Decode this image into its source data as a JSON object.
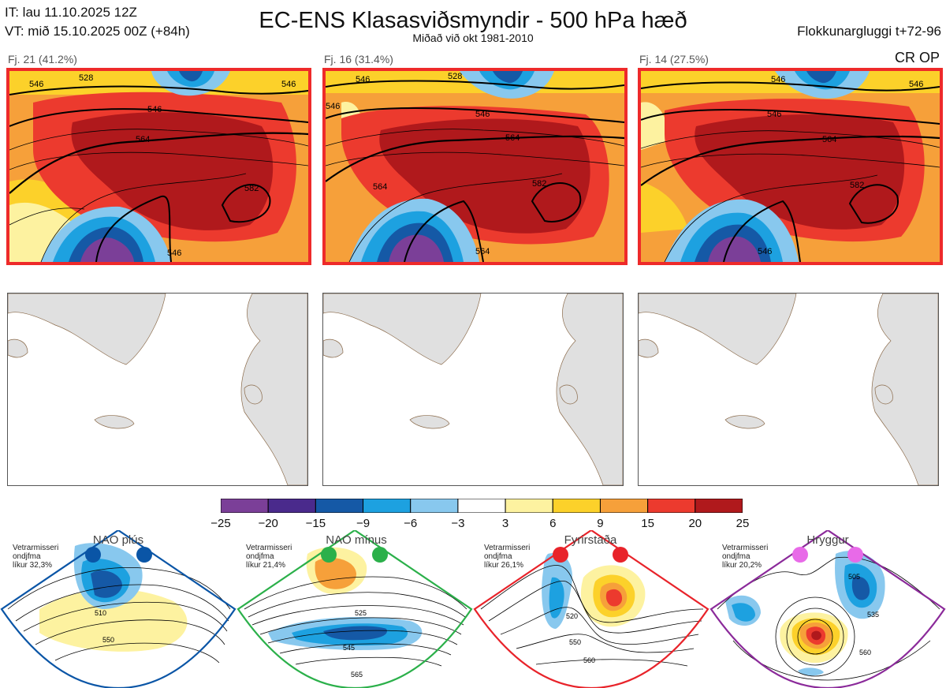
{
  "header": {
    "it_line": "IT: lau 11.10.2025 12Z",
    "vt_line": "VT: mið 15.10.2025 00Z  (+84h)",
    "title": "EC-ENS Klasasviðsmyndir - 500 hPa hæð",
    "subtitle": "Miðað við okt 1981-2010",
    "window": "Flokkunargluggi t+72-96"
  },
  "panels": [
    {
      "label": "Fj. 21 (41.2%)",
      "contours": [
        "528",
        "546",
        "546",
        "564",
        "582",
        "546",
        "546"
      ]
    },
    {
      "label": "Fj. 16 (31.4%)",
      "contours": [
        "546",
        "528",
        "546",
        "546",
        "564",
        "582",
        "564",
        "564"
      ]
    },
    {
      "label": "Fj. 14 (27.5%)",
      "contours": [
        "546",
        "546",
        "564",
        "582",
        "546",
        "546"
      ]
    }
  ],
  "top_right_tag": "CR OP",
  "colorbar": {
    "colors": [
      "#7b3f98",
      "#4a2a8c",
      "#1559a6",
      "#1da1e0",
      "#88c8ee",
      "#ffffff",
      "#fdf2a0",
      "#fcd12a",
      "#f6a03a",
      "#ec3a2e",
      "#b0191c"
    ],
    "ticks": [
      "−25",
      "−20",
      "−15",
      "−9",
      "−6",
      "−3",
      "3",
      "6",
      "9",
      "15",
      "20",
      "25"
    ]
  },
  "regimes": [
    {
      "name": "NAO plús",
      "line1": "Vetrarmisseri",
      "line2": "ondjfma",
      "line3": "líkur 32,3%",
      "color": "#0a55a6",
      "contours": [
        "510",
        "550"
      ]
    },
    {
      "name": "NAO mínus",
      "line1": "Vetrarmisseri",
      "line2": "ondjfma",
      "line3": "líkur 21,4%",
      "color": "#2bb04a",
      "contours": [
        "525",
        "545",
        "565"
      ]
    },
    {
      "name": "Fyrirstaða",
      "line1": "Vetrarmisseri",
      "line2": "ondjfma",
      "line3": "líkur 26,1%",
      "color": "#e8232a",
      "contours": [
        "520",
        "550",
        "560"
      ]
    },
    {
      "name": "Hryggur",
      "line1": "Vetrarmisseri",
      "line2": "ondjfma",
      "line3": "líkur 20,2%",
      "color": "#8b2a9a",
      "contours": [
        "505",
        "535",
        "560"
      ]
    }
  ]
}
